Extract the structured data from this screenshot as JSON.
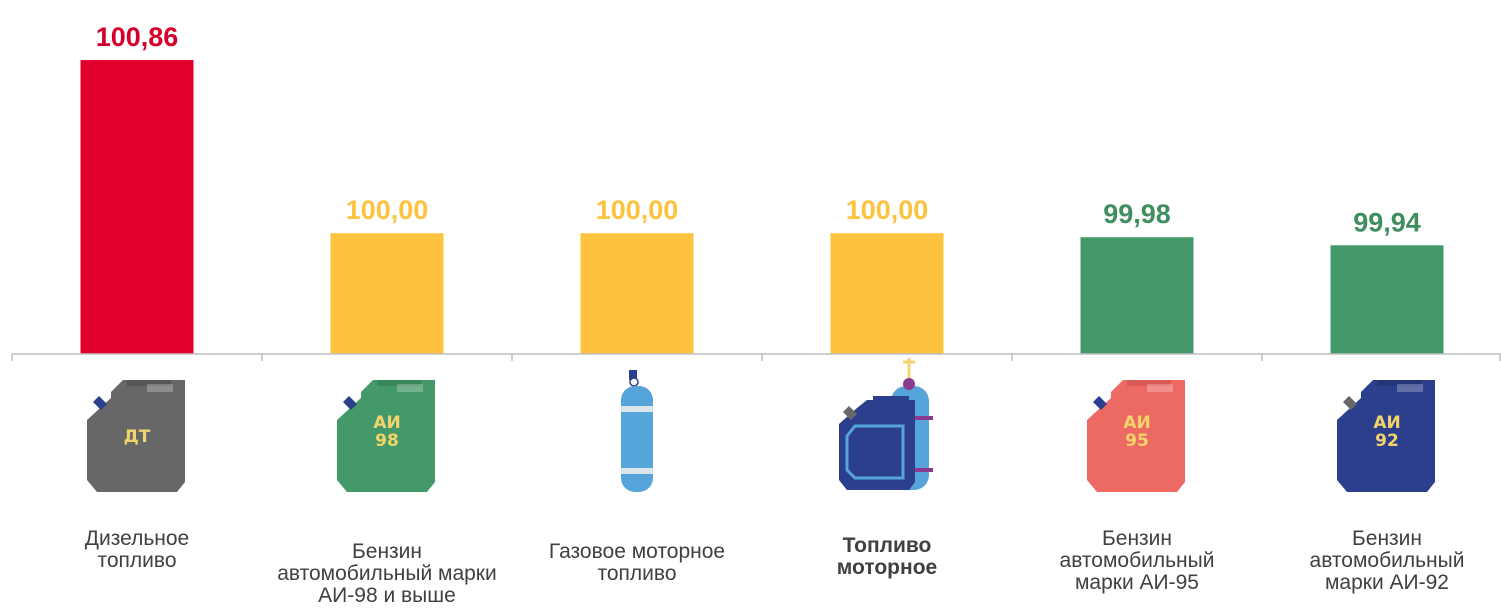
{
  "chart_data": {
    "type": "bar",
    "categories": [
      "Дизельное\nтопливо",
      "Бензин\nавтомобильный марки\nАИ-98 и выше",
      "Газовое моторное\nтопливо",
      "Топливо\nмоторное",
      "Бензин\nавтомобильный\nмарки АИ-95",
      "Бензин\nавтомобильный\nмарки АИ-92"
    ],
    "values": [
      100.86,
      100.0,
      100.0,
      100.0,
      99.98,
      99.94
    ],
    "value_labels": [
      "100,86",
      "100,00",
      "100,00",
      "100,00",
      "99,98",
      "99,94"
    ],
    "bar_colors": [
      "#e2002d",
      "#fdc23e",
      "#fdc23e",
      "#fdc23e",
      "#44996a",
      "#44996a"
    ],
    "label_colors": [
      "#d3002b",
      "#fdc23e",
      "#fdc23e",
      "#fdc23e",
      "#3f8e5f",
      "#3f8e5f"
    ],
    "bold_categories": [
      3
    ],
    "title": "",
    "xlabel": "",
    "ylabel": "",
    "ylim": [
      99.4,
      100.9
    ],
    "grid": false,
    "legend": "none"
  },
  "icons": [
    {
      "name": "diesel-canister-icon",
      "kind": "canister",
      "color": "#676767",
      "handle": "#555555",
      "cap": "#2c3f8c",
      "text": "ДТ",
      "text_color": "#f3d36b"
    },
    {
      "name": "ai98-canister-icon",
      "kind": "canister",
      "color": "#44996a",
      "handle": "#3a855b",
      "cap": "#2c3f8c",
      "text": "АИ\n98",
      "text_color": "#f3d36b"
    },
    {
      "name": "gas-cylinder-icon",
      "kind": "cylinder",
      "color": "#55a4da",
      "band": "#dbe5ec",
      "cap": "#2c3f8c"
    },
    {
      "name": "motor-fuel-combo-icon",
      "kind": "combo",
      "color": "#2c3f8c",
      "cyl_color": "#55a4da",
      "accent": "#f3d36b",
      "strap": "#8b3b8f"
    },
    {
      "name": "ai95-canister-icon",
      "kind": "canister",
      "color": "#ec6a63",
      "handle": "#d85a54",
      "cap": "#2c3f8c",
      "text": "АИ\n95",
      "text_color": "#f3d36b"
    },
    {
      "name": "ai92-canister-icon",
      "kind": "canister",
      "color": "#2c3f8c",
      "handle": "#233478",
      "cap": "#676767",
      "text": "АИ\n92",
      "text_color": "#f3d36b"
    }
  ]
}
